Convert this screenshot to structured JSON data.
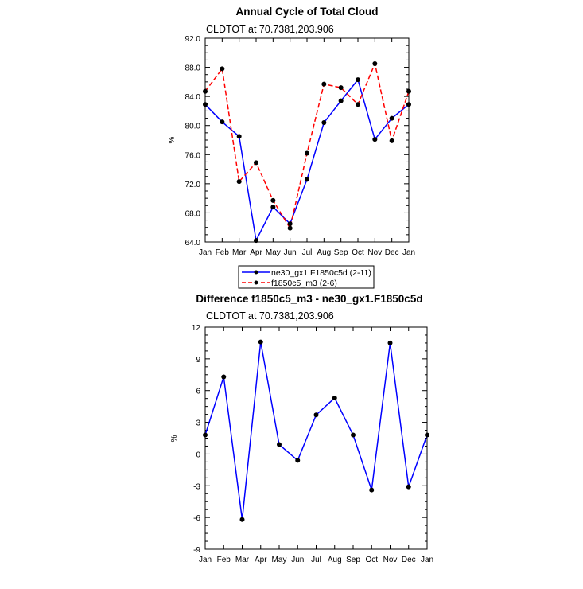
{
  "chart_data": [
    {
      "type": "line",
      "title": "Annual Cycle of Total Cloud",
      "subtitle": "CLDTOT at 70.7381,203.906",
      "ylabel": "%",
      "xlabel": "",
      "categories": [
        "Jan",
        "Feb",
        "Mar",
        "Apr",
        "May",
        "Jun",
        "Jul",
        "Aug",
        "Sep",
        "Oct",
        "Nov",
        "Dec",
        "Jan"
      ],
      "ylim": [
        64.0,
        92.0
      ],
      "yticks": [
        "64.0",
        "68.0",
        "72.0",
        "76.0",
        "80.0",
        "84.0",
        "88.0",
        "92.0"
      ],
      "grid": false,
      "legend_position": "bottom-center",
      "series": [
        {
          "name": "ne30_gx1.F1850c5d (2-11)",
          "color": "#0000ff",
          "dash": "solid",
          "values": [
            82.9,
            80.5,
            78.5,
            64.2,
            68.8,
            66.5,
            72.6,
            80.4,
            83.4,
            86.3,
            78.1,
            81.0,
            82.9
          ]
        },
        {
          "name": "f1850c5_m3 (2-6)",
          "color": "#ff0000",
          "dash": "dashed",
          "values": [
            84.7,
            87.8,
            72.3,
            74.9,
            69.7,
            65.9,
            76.2,
            85.7,
            85.2,
            82.9,
            88.5,
            77.9,
            84.7
          ]
        }
      ]
    },
    {
      "type": "line",
      "title": "Difference f1850c5_m3 - ne30_gx1.F1850c5d",
      "subtitle": "CLDTOT at 70.7381,203.906",
      "ylabel": "%",
      "xlabel": "",
      "categories": [
        "Jan",
        "Feb",
        "Mar",
        "Apr",
        "May",
        "Jun",
        "Jul",
        "Aug",
        "Sep",
        "Oct",
        "Nov",
        "Dec",
        "Jan"
      ],
      "ylim": [
        -9,
        12
      ],
      "yticks": [
        "-9",
        "-6",
        "-3",
        "0",
        "3",
        "6",
        "9",
        "12"
      ],
      "grid": false,
      "series": [
        {
          "color": "#0000ff",
          "dash": "solid",
          "values": [
            1.8,
            7.3,
            -6.2,
            10.6,
            0.9,
            -0.6,
            3.7,
            5.3,
            1.8,
            -3.4,
            10.5,
            -3.1,
            1.8
          ]
        }
      ]
    }
  ]
}
